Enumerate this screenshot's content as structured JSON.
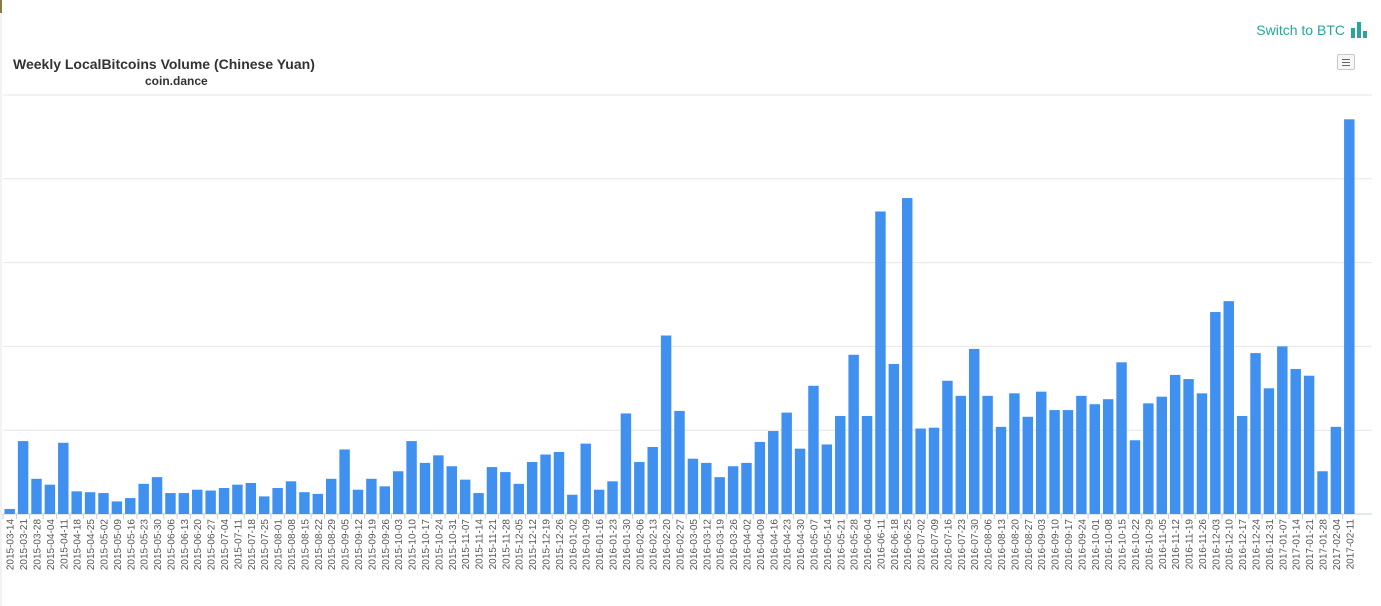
{
  "toggle": {
    "label": "Switch to BTC",
    "icon": "bar-chart-icon",
    "color": "#26a69a"
  },
  "chart_data": {
    "type": "bar",
    "title": "Weekly LocalBitcoins Volume (Chinese Yuan)",
    "subtitle": "coin.dance",
    "xlabel": "",
    "ylabel": "",
    "ylim": [
      0,
      500
    ],
    "grid": true,
    "legend": "none",
    "bar_color": "#4090f0",
    "categories": [
      "2015-03-14",
      "2015-03-21",
      "2015-03-28",
      "2015-04-04",
      "2015-04-11",
      "2015-04-18",
      "2015-04-25",
      "2015-05-02",
      "2015-05-09",
      "2015-05-16",
      "2015-05-23",
      "2015-05-30",
      "2015-06-06",
      "2015-06-13",
      "2015-06-20",
      "2015-06-27",
      "2015-07-04",
      "2015-07-11",
      "2015-07-18",
      "2015-07-25",
      "2015-08-01",
      "2015-08-08",
      "2015-08-15",
      "2015-08-22",
      "2015-08-29",
      "2015-09-05",
      "2015-09-12",
      "2015-09-19",
      "2015-09-26",
      "2015-10-03",
      "2015-10-10",
      "2015-10-17",
      "2015-10-24",
      "2015-10-31",
      "2015-11-07",
      "2015-11-14",
      "2015-11-21",
      "2015-11-28",
      "2015-12-05",
      "2015-12-12",
      "2015-12-19",
      "2015-12-26",
      "2016-01-02",
      "2016-01-09",
      "2016-01-16",
      "2016-01-23",
      "2016-01-30",
      "2016-02-06",
      "2016-02-13",
      "2016-02-20",
      "2016-02-27",
      "2016-03-05",
      "2016-03-12",
      "2016-03-19",
      "2016-03-26",
      "2016-04-02",
      "2016-04-09",
      "2016-04-16",
      "2016-04-23",
      "2016-04-30",
      "2016-05-07",
      "2016-05-14",
      "2016-05-21",
      "2016-05-28",
      "2016-06-04",
      "2016-06-11",
      "2016-06-18",
      "2016-06-25",
      "2016-07-02",
      "2016-07-09",
      "2016-07-16",
      "2016-07-23",
      "2016-07-30",
      "2016-08-06",
      "2016-08-13",
      "2016-08-20",
      "2016-08-27",
      "2016-09-03",
      "2016-09-10",
      "2016-09-17",
      "2016-09-24",
      "2016-10-01",
      "2016-10-08",
      "2016-10-15",
      "2016-10-22",
      "2016-10-29",
      "2016-11-05",
      "2016-11-12",
      "2016-11-19",
      "2016-11-26",
      "2016-12-03",
      "2016-12-10",
      "2016-12-17",
      "2016-12-24",
      "2016-12-31",
      "2017-01-07",
      "2017-01-14",
      "2017-01-21",
      "2017-01-28",
      "2017-02-04",
      "2017-02-11"
    ],
    "tick_labels": [
      "2015-03-14",
      "2015-03-21",
      "2015-03-28",
      "2015-04-04",
      "2015-04-11",
      "2015-04-18",
      "2015-04-25",
      "2015-05-02",
      "2015-05-09",
      "2015-05-16",
      "2015-05-23",
      "2015-05-30",
      "2015-06-06",
      "2015-06-13",
      "2015-06-20",
      "2015-06-27",
      "2015-07-04",
      "2015-07-11",
      "2015-07-18",
      "2015-07-25",
      "2015-08-01",
      "2015-08-08",
      "2015-08-15",
      "2015-08-22",
      "2015-08-29",
      "2015-09-05",
      "2015-09-12",
      "2015-09-19",
      "2015-09-26",
      "2015-10-03",
      "2015-10-10",
      "2015-10-17",
      "2015-10-24",
      "2015-10-31",
      "2015-11-07",
      "2015-11-14",
      "2015-11-21",
      "2015-11-28",
      "2015-12-05",
      "2015-12-12",
      "2015-12-19",
      "2015-12-26",
      "2016-01-02",
      "2016-01-09",
      "2016-01-16",
      "2016-01-23",
      "2016-01-30",
      "2016-02-06",
      "2016-02-13",
      "2016-02-20",
      "2016-02-27",
      "2016-03-05",
      "2016-03-12",
      "2016-03-19",
      "2016-03-26",
      "2016-04-02",
      "2016-04-09",
      "2016-04-16",
      "2016-04-23",
      "2016-04-30",
      "2016-05-07",
      "2016-05-14",
      "2016-05-21",
      "2016-05-28",
      "2016-06-04",
      "2016-06-11",
      "2016-06-18",
      "2016-06-25",
      "2016-07-02",
      "2016-07-09",
      "2016-07-16",
      "2016-07-23",
      "2016-07-30",
      "2016-08-06",
      "2016-08-13",
      "2016-08-20",
      "2016-08-27",
      "2016-09-03",
      "2016-09-10",
      "2016-09-17",
      "2016-09-24",
      "2016-10-01",
      "2016-10-08",
      "2016-10-15",
      "2016-10-22",
      "2016-10-29",
      "2016-11-05",
      "2016-11-12",
      "2016-11-19",
      "2016-11-26",
      "2016-12-03",
      "2016-12-10",
      "2016-12-17",
      "2016-12-24",
      "2016-12-31",
      "2017-01-07",
      "2017-01-14",
      "2017-01-21",
      "2017-01-28",
      "2017-02-04",
      "2017-02-11"
    ],
    "values": [
      6,
      87,
      42,
      35,
      85,
      27,
      26,
      25,
      15,
      19,
      36,
      44,
      25,
      25,
      29,
      28,
      31,
      35,
      37,
      21,
      31,
      39,
      26,
      24,
      42,
      77,
      29,
      42,
      33,
      51,
      87,
      61,
      70,
      57,
      41,
      25,
      56,
      50,
      36,
      62,
      71,
      74,
      23,
      84,
      29,
      39,
      120,
      62,
      80,
      213,
      123,
      66,
      61,
      44,
      57,
      61,
      86,
      99,
      121,
      78,
      153,
      83,
      117,
      190,
      117,
      361,
      179,
      377,
      102,
      103,
      159,
      141,
      197,
      141,
      104,
      144,
      116,
      146,
      124,
      124,
      141,
      131,
      137,
      181,
      88,
      132,
      140,
      166,
      161,
      144,
      241,
      254,
      117,
      192,
      150,
      200,
      173,
      165,
      51,
      104,
      471
    ]
  }
}
